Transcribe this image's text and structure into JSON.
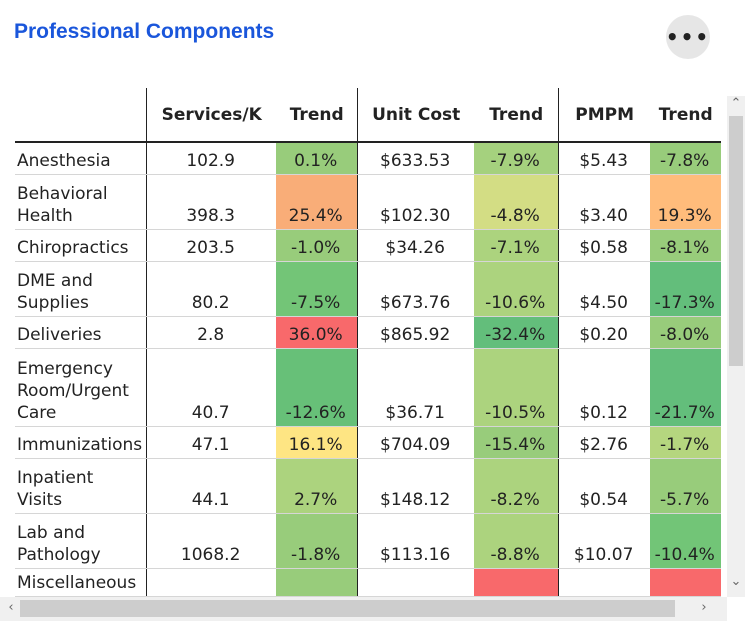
{
  "title": "Professional Components",
  "more_label": "•••",
  "columns": [
    "",
    "Services/K",
    "Trend",
    "Unit Cost",
    "Trend",
    "PMPM",
    "Trend"
  ],
  "rows": [
    {
      "name": "Anesthesia",
      "services": "102.9",
      "t1": "0.1%",
      "c1": "#98cc7b",
      "cost": "$633.53",
      "t2": "-7.9%",
      "c2": "#a5d17e",
      "pmpm": "$5.43",
      "t3": "-7.8%",
      "c3": "#98cc7b"
    },
    {
      "name": "Behavioral Health",
      "services": "398.3",
      "t1": "25.4%",
      "c1": "#f9ad78",
      "cost": "$102.30",
      "t2": "-4.8%",
      "c2": "#d3dd84",
      "pmpm": "$3.40",
      "t3": "19.3%",
      "c3": "#ffbc7b"
    },
    {
      "name": "Chiropractics",
      "services": "203.5",
      "t1": "-1.0%",
      "c1": "#98cc7b",
      "cost": "$34.26",
      "t2": "-7.1%",
      "c2": "#acd37e",
      "pmpm": "$0.58",
      "t3": "-8.1%",
      "c3": "#98cc7b"
    },
    {
      "name": "DME and Supplies",
      "services": "80.2",
      "t1": "-7.5%",
      "c1": "#73c577",
      "cost": "$673.76",
      "t2": "-10.6%",
      "c2": "#acd37e",
      "pmpm": "$4.50",
      "t3": "-17.3%",
      "c3": "#63be7b"
    },
    {
      "name": "Deliveries",
      "services": "2.8",
      "t1": "36.0%",
      "c1": "#f8696b",
      "cost": "$865.92",
      "t2": "-32.4%",
      "c2": "#63be7b",
      "pmpm": "$0.20",
      "t3": "-8.0%",
      "c3": "#98cc7b"
    },
    {
      "name": "Emergency Room/Urgent Care",
      "services": "40.7",
      "t1": "-12.6%",
      "c1": "#67c078",
      "cost": "$36.71",
      "t2": "-10.5%",
      "c2": "#acd37e",
      "pmpm": "$0.12",
      "t3": "-21.7%",
      "c3": "#63be7b"
    },
    {
      "name": "Immunizations",
      "services": "47.1",
      "t1": "16.1%",
      "c1": "#fee583",
      "cost": "$704.09",
      "t2": "-15.4%",
      "c2": "#98cc7b",
      "pmpm": "$2.76",
      "t3": "-1.7%",
      "c3": "#b5d67f"
    },
    {
      "name": "Inpatient Visits",
      "services": "44.1",
      "t1": "2.7%",
      "c1": "#acd37e",
      "cost": "$148.12",
      "t2": "-8.2%",
      "c2": "#acd37e",
      "pmpm": "$0.54",
      "t3": "-5.7%",
      "c3": "#98cc7b"
    },
    {
      "name": "Lab and Pathology",
      "services": "1068.2",
      "t1": "-1.8%",
      "c1": "#98cc7b",
      "cost": "$113.16",
      "t2": "-8.8%",
      "c2": "#acd37e",
      "pmpm": "$10.07",
      "t3": "-10.4%",
      "c3": "#72c577"
    },
    {
      "name": "Miscellaneous",
      "services": "",
      "t1": "",
      "c1": "#98cc7b",
      "cost": "",
      "t2": "",
      "c2": "#f8696b",
      "pmpm": "",
      "t3": "",
      "c3": "#f8696b"
    }
  ],
  "icons": {
    "more": "more-horizontal-icon",
    "up": "chevron-up-icon",
    "down": "chevron-down-icon",
    "left": "chevron-left-icon",
    "right": "chevron-right-icon"
  }
}
